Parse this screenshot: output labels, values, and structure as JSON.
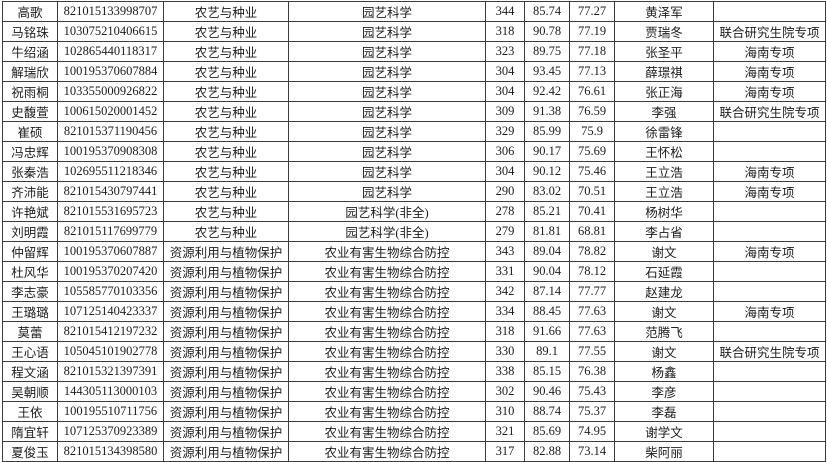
{
  "document": {
    "kind": "admission-result-table",
    "header_visible": false
  },
  "colors": {
    "background": "#ffffff",
    "border": "#3c3c3c",
    "text": "#1c1c1c"
  },
  "table": {
    "column_keys": [
      "name",
      "candidate_id",
      "major_field",
      "research_direction",
      "initial_score",
      "retest_score",
      "total_score",
      "advisor",
      "remark"
    ],
    "rows": [
      {
        "name": "高歌",
        "candidate_id": "821015133998707",
        "major_field": "农艺与种业",
        "research_direction": "园艺科学",
        "initial_score": "344",
        "retest_score": "85.74",
        "total_score": "77.27",
        "advisor": "黄泽军",
        "remark": ""
      },
      {
        "name": "马铭珠",
        "candidate_id": "103075210406615",
        "major_field": "农艺与种业",
        "research_direction": "园艺科学",
        "initial_score": "318",
        "retest_score": "90.78",
        "total_score": "77.19",
        "advisor": "贾瑞冬",
        "remark": "联合研究生院专项"
      },
      {
        "name": "牛绍涵",
        "candidate_id": "102865440118317",
        "major_field": "农艺与种业",
        "research_direction": "园艺科学",
        "initial_score": "323",
        "retest_score": "89.75",
        "total_score": "77.18",
        "advisor": "张圣平",
        "remark": "海南专项"
      },
      {
        "name": "解瑞欣",
        "candidate_id": "100195370607884",
        "major_field": "农艺与种业",
        "research_direction": "园艺科学",
        "initial_score": "304",
        "retest_score": "93.45",
        "total_score": "77.13",
        "advisor": "薛璟祺",
        "remark": "海南专项"
      },
      {
        "name": "祝雨桐",
        "candidate_id": "103355000926822",
        "major_field": "农艺与种业",
        "research_direction": "园艺科学",
        "initial_score": "304",
        "retest_score": "92.42",
        "total_score": "76.61",
        "advisor": "张正海",
        "remark": "海南专项"
      },
      {
        "name": "史馥萱",
        "candidate_id": "100615020001452",
        "major_field": "农艺与种业",
        "research_direction": "园艺科学",
        "initial_score": "309",
        "retest_score": "91.38",
        "total_score": "76.59",
        "advisor": "李强",
        "remark": "联合研究生院专项"
      },
      {
        "name": "崔硕",
        "candidate_id": "821015371190456",
        "major_field": "农艺与种业",
        "research_direction": "园艺科学",
        "initial_score": "329",
        "retest_score": "85.99",
        "total_score": "75.9",
        "advisor": "徐雷锋",
        "remark": ""
      },
      {
        "name": "冯忠辉",
        "candidate_id": "100195370908308",
        "major_field": "农艺与种业",
        "research_direction": "园艺科学",
        "initial_score": "306",
        "retest_score": "90.17",
        "total_score": "75.69",
        "advisor": "王怀松",
        "remark": ""
      },
      {
        "name": "张秦浩",
        "candidate_id": "102695511218346",
        "major_field": "农艺与种业",
        "research_direction": "园艺科学",
        "initial_score": "304",
        "retest_score": "90.12",
        "total_score": "75.46",
        "advisor": "王立浩",
        "remark": "海南专项"
      },
      {
        "name": "齐沛能",
        "candidate_id": "821015430797441",
        "major_field": "农艺与种业",
        "research_direction": "园艺科学",
        "initial_score": "290",
        "retest_score": "83.02",
        "total_score": "70.51",
        "advisor": "王立浩",
        "remark": "海南专项"
      },
      {
        "name": "许艳斌",
        "candidate_id": "821015531695723",
        "major_field": "农艺与种业",
        "research_direction": "园艺科学(非全)",
        "initial_score": "278",
        "retest_score": "85.21",
        "total_score": "70.41",
        "advisor": "杨树华",
        "remark": ""
      },
      {
        "name": "刘明霞",
        "candidate_id": "821015117699779",
        "major_field": "农艺与种业",
        "research_direction": "园艺科学(非全)",
        "initial_score": "279",
        "retest_score": "81.81",
        "total_score": "68.81",
        "advisor": "李占省",
        "remark": ""
      },
      {
        "name": "仲留辉",
        "candidate_id": "100195370607887",
        "major_field": "资源利用与植物保护",
        "research_direction": "农业有害生物综合防控",
        "initial_score": "343",
        "retest_score": "89.04",
        "total_score": "78.82",
        "advisor": "谢文",
        "remark": "海南专项"
      },
      {
        "name": "杜风华",
        "candidate_id": "100195370207420",
        "major_field": "资源利用与植物保护",
        "research_direction": "农业有害生物综合防控",
        "initial_score": "331",
        "retest_score": "90.04",
        "total_score": "78.12",
        "advisor": "石延霞",
        "remark": ""
      },
      {
        "name": "李志豪",
        "candidate_id": "105585770103356",
        "major_field": "资源利用与植物保护",
        "research_direction": "农业有害生物综合防控",
        "initial_score": "342",
        "retest_score": "87.14",
        "total_score": "77.77",
        "advisor": "赵建龙",
        "remark": ""
      },
      {
        "name": "王璐璐",
        "candidate_id": "107125140423337",
        "major_field": "资源利用与植物保护",
        "research_direction": "农业有害生物综合防控",
        "initial_score": "334",
        "retest_score": "88.45",
        "total_score": "77.63",
        "advisor": "谢文",
        "remark": "海南专项"
      },
      {
        "name": "莫蕾",
        "candidate_id": "821015412197232",
        "major_field": "资源利用与植物保护",
        "research_direction": "农业有害生物综合防控",
        "initial_score": "318",
        "retest_score": "91.66",
        "total_score": "77.63",
        "advisor": "范腾飞",
        "remark": ""
      },
      {
        "name": "王心语",
        "candidate_id": "105045101902778",
        "major_field": "资源利用与植物保护",
        "research_direction": "农业有害生物综合防控",
        "initial_score": "330",
        "retest_score": "89.1",
        "total_score": "77.55",
        "advisor": "谢文",
        "remark": "联合研究生院专项"
      },
      {
        "name": "程文涵",
        "candidate_id": "821015321397391",
        "major_field": "资源利用与植物保护",
        "research_direction": "农业有害生物综合防控",
        "initial_score": "338",
        "retest_score": "85.15",
        "total_score": "76.38",
        "advisor": "杨鑫",
        "remark": ""
      },
      {
        "name": "吴朝顺",
        "candidate_id": "144305113000103",
        "major_field": "资源利用与植物保护",
        "research_direction": "农业有害生物综合防控",
        "initial_score": "302",
        "retest_score": "90.46",
        "total_score": "75.43",
        "advisor": "李彦",
        "remark": ""
      },
      {
        "name": "王依",
        "candidate_id": "100195510711756",
        "major_field": "资源利用与植物保护",
        "research_direction": "农业有害生物综合防控",
        "initial_score": "310",
        "retest_score": "88.74",
        "total_score": "75.37",
        "advisor": "李磊",
        "remark": ""
      },
      {
        "name": "隋宜轩",
        "candidate_id": "107125370923389",
        "major_field": "资源利用与植物保护",
        "research_direction": "农业有害生物综合防控",
        "initial_score": "321",
        "retest_score": "85.69",
        "total_score": "74.95",
        "advisor": "谢学文",
        "remark": ""
      },
      {
        "name": "夏俊玉",
        "candidate_id": "821015134398580",
        "major_field": "资源利用与植物保护",
        "research_direction": "农业有害生物综合防控",
        "initial_score": "317",
        "retest_score": "82.88",
        "total_score": "73.14",
        "advisor": "柴阿丽",
        "remark": ""
      }
    ]
  }
}
